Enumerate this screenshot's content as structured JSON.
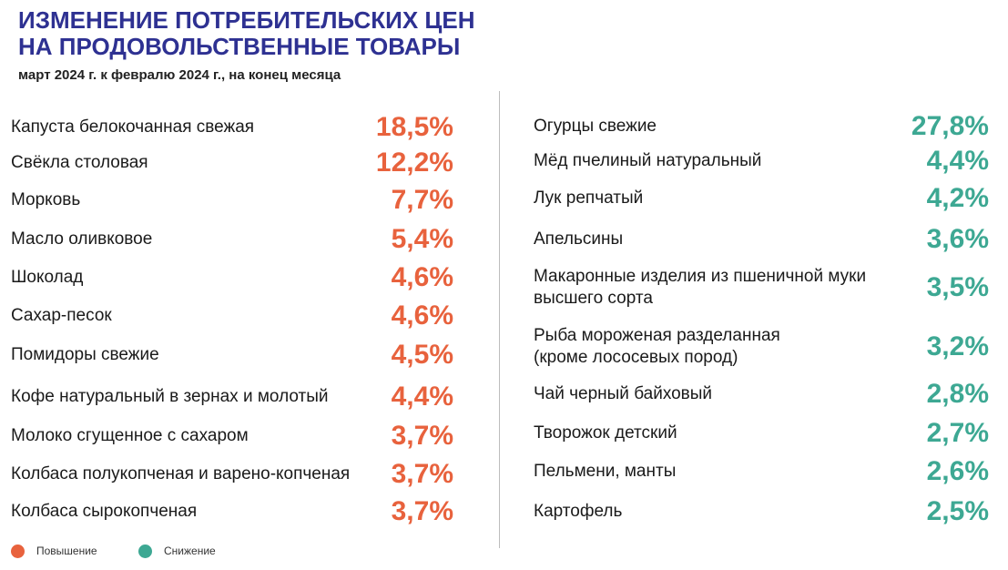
{
  "title": {
    "line1": "ИЗМЕНЕНИЕ ПОТРЕБИТЕЛЬСКИХ ЦЕН",
    "line2": "НА ПРОДОВОЛЬСТВЕННЫЕ ТОВАРЫ"
  },
  "subtitle": "март 2024 г. к февралю 2024 г., на конец месяца",
  "colors": {
    "increase": "#e8623d",
    "decrease": "#3da893",
    "title": "#2e3192"
  },
  "legend": {
    "increase_label": "Повышение",
    "decrease_label": "Снижение"
  },
  "chart_data": {
    "type": "table",
    "unit": "%",
    "series": [
      {
        "name": "Повышение",
        "items": [
          {
            "label": "Капуста белокочанная свежая",
            "value": 18.5,
            "display": "18,5%"
          },
          {
            "label": "Свёкла столовая",
            "value": 12.2,
            "display": "12,2%"
          },
          {
            "label": "Морковь",
            "value": 7.7,
            "display": "7,7%"
          },
          {
            "label": "Масло оливковое",
            "value": 5.4,
            "display": "5,4%"
          },
          {
            "label": "Шоколад",
            "value": 4.6,
            "display": "4,6%"
          },
          {
            "label": "Сахар-песок",
            "value": 4.6,
            "display": "4,6%"
          },
          {
            "label": "Помидоры свежие",
            "value": 4.5,
            "display": "4,5%"
          },
          {
            "label": "Кофе натуральный в зернах и молотый",
            "value": 4.4,
            "display": "4,4%"
          },
          {
            "label": "Молоко сгущенное с сахаром",
            "value": 3.7,
            "display": "3,7%"
          },
          {
            "label": "Колбаса полукопченая и варено-копченая",
            "value": 3.7,
            "display": "3,7%"
          },
          {
            "label": "Колбаса сырокопченая",
            "value": 3.7,
            "display": "3,7%"
          }
        ]
      },
      {
        "name": "Снижение",
        "items": [
          {
            "label": "Огурцы свежие",
            "value": 27.8,
            "display": "27,8%"
          },
          {
            "label": "Мёд пчелиный натуральный",
            "value": 4.4,
            "display": "4,4%"
          },
          {
            "label": "Лук репчатый",
            "value": 4.2,
            "display": "4,2%"
          },
          {
            "label": "Апельсины",
            "value": 3.6,
            "display": "3,6%"
          },
          {
            "label": "Макаронные изделия из пшеничной муки\nвысшего сорта",
            "value": 3.5,
            "display": "3,5%"
          },
          {
            "label": "Рыба мороженая разделанная\n(кроме лососевых пород)",
            "value": 3.2,
            "display": "3,2%"
          },
          {
            "label": "Чай черный байховый",
            "value": 2.8,
            "display": "2,8%"
          },
          {
            "label": "Творожок детский",
            "value": 2.7,
            "display": "2,7%"
          },
          {
            "label": "Пельмени, манты",
            "value": 2.6,
            "display": "2,6%"
          },
          {
            "label": "Картофель",
            "value": 2.5,
            "display": "2,5%"
          }
        ]
      }
    ]
  }
}
